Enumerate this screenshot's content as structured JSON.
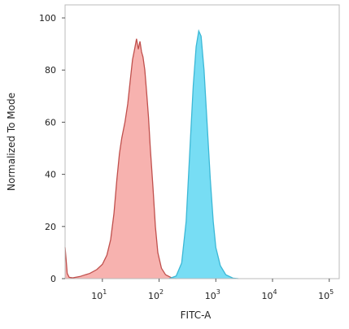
{
  "chart_data": {
    "type": "area",
    "title": "",
    "xlabel": "FITC-A",
    "ylabel": "Normalized To Mode",
    "x_scale": "log",
    "xlim": [
      2.2,
      150000
    ],
    "ylim": [
      0,
      105
    ],
    "x_ticks": [
      {
        "value": 10,
        "base": "10",
        "exp": "1"
      },
      {
        "value": 100,
        "base": "10",
        "exp": "2"
      },
      {
        "value": 1000,
        "base": "10",
        "exp": "3"
      },
      {
        "value": 10000,
        "base": "10",
        "exp": "4"
      },
      {
        "value": 100000,
        "base": "10",
        "exp": "5"
      }
    ],
    "y_ticks": [
      {
        "value": 0,
        "label": "0"
      },
      {
        "value": 20,
        "label": "20"
      },
      {
        "value": 40,
        "label": "40"
      },
      {
        "value": 60,
        "label": "60"
      },
      {
        "value": 80,
        "label": "80"
      },
      {
        "value": 100,
        "label": "100"
      }
    ],
    "grid": false,
    "legend": "none",
    "series": [
      {
        "color": "#c0504d",
        "fill": "#f6a4a1",
        "points": [
          [
            2.2,
            12
          ],
          [
            2.3,
            7
          ],
          [
            2.4,
            2
          ],
          [
            2.6,
            0.5
          ],
          [
            3,
            0.3
          ],
          [
            4,
            0.8
          ],
          [
            5,
            1.5
          ],
          [
            6,
            2
          ],
          [
            8,
            3.5
          ],
          [
            10,
            5.5
          ],
          [
            12,
            9
          ],
          [
            14,
            15
          ],
          [
            16,
            25
          ],
          [
            18,
            38
          ],
          [
            20,
            48
          ],
          [
            22,
            54
          ],
          [
            25,
            60
          ],
          [
            28,
            67
          ],
          [
            31,
            76
          ],
          [
            34,
            84
          ],
          [
            37,
            88
          ],
          [
            40,
            92
          ],
          [
            43,
            88
          ],
          [
            46,
            91
          ],
          [
            49,
            87
          ],
          [
            52,
            85
          ],
          [
            56,
            80
          ],
          [
            60,
            72
          ],
          [
            65,
            62
          ],
          [
            70,
            50
          ],
          [
            78,
            35
          ],
          [
            86,
            20
          ],
          [
            95,
            10
          ],
          [
            110,
            4
          ],
          [
            130,
            1.5
          ],
          [
            170,
            0.2
          ],
          [
            200,
            0
          ]
        ]
      },
      {
        "color": "#3cb8d6",
        "fill": "#5fd7f2",
        "points": [
          [
            150,
            0
          ],
          [
            200,
            1
          ],
          [
            250,
            6
          ],
          [
            300,
            22
          ],
          [
            350,
            50
          ],
          [
            400,
            74
          ],
          [
            450,
            89
          ],
          [
            500,
            95
          ],
          [
            550,
            93
          ],
          [
            620,
            80
          ],
          [
            700,
            60
          ],
          [
            800,
            38
          ],
          [
            900,
            22
          ],
          [
            1000,
            12
          ],
          [
            1200,
            5
          ],
          [
            1500,
            1.5
          ],
          [
            2000,
            0.2
          ],
          [
            2500,
            0
          ]
        ]
      }
    ]
  }
}
